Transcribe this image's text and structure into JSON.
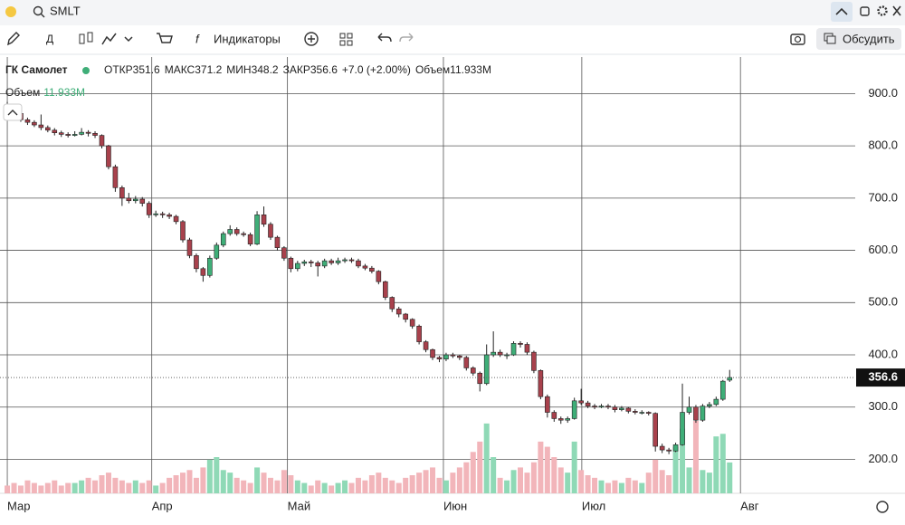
{
  "toolbar": {
    "symbol": "SMLT",
    "interval": "Д",
    "indicators": "Индикаторы",
    "discuss": "Обсудить"
  },
  "chart_data": {
    "type": "candlestick",
    "title": "ГК Самолет",
    "header": {
      "open": "ОТКР",
      "high": "МАКС",
      "low": "МИН",
      "close": "ЗАКР",
      "change": "+7.0 (+2.00%)",
      "volume": "Объем"
    },
    "last_volume_label": "11.933M",
    "candles": [
      [
        878,
        884,
        862,
        870
      ],
      [
        870,
        874,
        858,
        862
      ],
      [
        862,
        866,
        846,
        850
      ],
      [
        850,
        854,
        840,
        845
      ],
      [
        845,
        849,
        836,
        840
      ],
      [
        840,
        860,
        830,
        835
      ],
      [
        835,
        839,
        826,
        830
      ],
      [
        830,
        834,
        820,
        825
      ],
      [
        825,
        829,
        817,
        822
      ],
      [
        822,
        826,
        816,
        820
      ],
      [
        820,
        828,
        818,
        822
      ],
      [
        822,
        834,
        820,
        826
      ],
      [
        826,
        830,
        818,
        824
      ],
      [
        824,
        828,
        815,
        820
      ],
      [
        820,
        822,
        795,
        800
      ],
      [
        800,
        802,
        755,
        760
      ],
      [
        760,
        764,
        712,
        720
      ],
      [
        720,
        724,
        685,
        700
      ],
      [
        700,
        710,
        690,
        695
      ],
      [
        695,
        704,
        690,
        698
      ],
      [
        698,
        702,
        684,
        690
      ],
      [
        690,
        694,
        662,
        668
      ],
      [
        668,
        676,
        664,
        670
      ],
      [
        670,
        674,
        662,
        668
      ],
      [
        668,
        672,
        660,
        665
      ],
      [
        665,
        668,
        650,
        655
      ],
      [
        655,
        658,
        615,
        620
      ],
      [
        620,
        624,
        585,
        590
      ],
      [
        590,
        594,
        558,
        565
      ],
      [
        565,
        568,
        540,
        552
      ],
      [
        552,
        590,
        548,
        585
      ],
      [
        585,
        615,
        582,
        610
      ],
      [
        610,
        636,
        606,
        632
      ],
      [
        632,
        648,
        628,
        640
      ],
      [
        640,
        644,
        628,
        632
      ],
      [
        632,
        636,
        626,
        630
      ],
      [
        630,
        634,
        608,
        612
      ],
      [
        612,
        675,
        610,
        668
      ],
      [
        668,
        684,
        645,
        650
      ],
      [
        650,
        654,
        620,
        625
      ],
      [
        625,
        628,
        600,
        605
      ],
      [
        605,
        608,
        580,
        585
      ],
      [
        585,
        588,
        558,
        565
      ],
      [
        565,
        580,
        560,
        575
      ],
      [
        575,
        582,
        570,
        578
      ],
      [
        578,
        582,
        568,
        576
      ],
      [
        576,
        580,
        550,
        570
      ],
      [
        570,
        584,
        566,
        580
      ],
      [
        580,
        584,
        572,
        576
      ],
      [
        576,
        586,
        572,
        580
      ],
      [
        580,
        586,
        576,
        582
      ],
      [
        582,
        586,
        576,
        580
      ],
      [
        580,
        584,
        566,
        570
      ],
      [
        570,
        574,
        562,
        566
      ],
      [
        566,
        570,
        556,
        560
      ],
      [
        560,
        562,
        535,
        540
      ],
      [
        540,
        542,
        505,
        510
      ],
      [
        510,
        512,
        482,
        488
      ],
      [
        488,
        492,
        472,
        478
      ],
      [
        478,
        480,
        462,
        468
      ],
      [
        468,
        470,
        450,
        455
      ],
      [
        455,
        458,
        420,
        425
      ],
      [
        425,
        428,
        405,
        410
      ],
      [
        410,
        412,
        390,
        395
      ],
      [
        395,
        398,
        386,
        392
      ],
      [
        392,
        404,
        388,
        400
      ],
      [
        400,
        404,
        394,
        398
      ],
      [
        398,
        400,
        390,
        395
      ],
      [
        395,
        398,
        370,
        375
      ],
      [
        375,
        378,
        360,
        365
      ],
      [
        365,
        368,
        330,
        345
      ],
      [
        345,
        420,
        342,
        400
      ],
      [
        400,
        445,
        396,
        405
      ],
      [
        405,
        410,
        396,
        400
      ],
      [
        400,
        404,
        392,
        400
      ],
      [
        400,
        426,
        398,
        422
      ],
      [
        422,
        426,
        414,
        420
      ],
      [
        420,
        424,
        400,
        405
      ],
      [
        405,
        408,
        365,
        370
      ],
      [
        370,
        372,
        315,
        320
      ],
      [
        320,
        324,
        280,
        290
      ],
      [
        290,
        294,
        272,
        278
      ],
      [
        278,
        282,
        268,
        275
      ],
      [
        275,
        282,
        270,
        278
      ],
      [
        278,
        318,
        276,
        312
      ],
      [
        312,
        335,
        304,
        308
      ],
      [
        308,
        312,
        298,
        302
      ],
      [
        302,
        306,
        296,
        300
      ],
      [
        300,
        306,
        298,
        302
      ],
      [
        302,
        306,
        296,
        300
      ],
      [
        300,
        304,
        290,
        295
      ],
      [
        295,
        302,
        292,
        298
      ],
      [
        298,
        300,
        288,
        292
      ],
      [
        292,
        296,
        286,
        290
      ],
      [
        290,
        294,
        286,
        290
      ],
      [
        290,
        292,
        284,
        288
      ],
      [
        288,
        290,
        215,
        225
      ],
      [
        225,
        230,
        212,
        218
      ],
      [
        218,
        222,
        210,
        216
      ],
      [
        216,
        232,
        214,
        228
      ],
      [
        228,
        345,
        226,
        290
      ],
      [
        290,
        320,
        286,
        300
      ],
      [
        300,
        304,
        270,
        275
      ],
      [
        275,
        306,
        272,
        302
      ],
      [
        302,
        310,
        298,
        305
      ],
      [
        305,
        320,
        302,
        315
      ],
      [
        315,
        352,
        312,
        349.6
      ],
      [
        351.6,
        371.2,
        348.2,
        356.6
      ]
    ],
    "volume": [
      3,
      4,
      3,
      5,
      4,
      3,
      4,
      5,
      3,
      4,
      4,
      5,
      6,
      5,
      7,
      8,
      6,
      5,
      4,
      5,
      4,
      5,
      3,
      4,
      6,
      7,
      8,
      9,
      6,
      10,
      13,
      14,
      9,
      8,
      6,
      5,
      4,
      10,
      8,
      6,
      5,
      9,
      7,
      5,
      4,
      3,
      5,
      4,
      3,
      4,
      5,
      4,
      6,
      5,
      7,
      8,
      6,
      5,
      4,
      6,
      7,
      8,
      9,
      10,
      6,
      5,
      8,
      10,
      12,
      16,
      20,
      27,
      14,
      6,
      5,
      9,
      10,
      8,
      12,
      20,
      18,
      14,
      10,
      8,
      20,
      9,
      7,
      6,
      5,
      4,
      5,
      4,
      6,
      5,
      4,
      8,
      13,
      9,
      7,
      18,
      25,
      10,
      28,
      9,
      8,
      22,
      23,
      11.933
    ],
    "up_color": "#3fae78",
    "down_color": "#a8414c",
    "volume_up_color": "#8fd9b6",
    "volume_down_color": "#f2b5ba",
    "xlim": [
      -1.08,
      125.6
    ],
    "xticks": [
      {
        "value": 0,
        "label": "Мар"
      },
      {
        "value": 21.4,
        "label": "Апр"
      },
      {
        "value": 41.5,
        "label": "Май"
      },
      {
        "value": 64.6,
        "label": "Июн"
      },
      {
        "value": 85.1,
        "label": "Июл"
      },
      {
        "value": 108.6,
        "label": "Авг"
      }
    ],
    "ylim": [
      135,
      970
    ],
    "yticks": [
      {
        "value": 200,
        "label": "200.0"
      },
      {
        "value": 300,
        "label": "300.0"
      },
      {
        "value": 400,
        "label": "400.0"
      },
      {
        "value": 500,
        "label": "500.0"
      },
      {
        "value": 600,
        "label": "600.0"
      },
      {
        "value": 700,
        "label": "700.0"
      },
      {
        "value": 800,
        "label": "800.0"
      },
      {
        "value": 900,
        "label": "900.0"
      }
    ],
    "grid": true
  }
}
